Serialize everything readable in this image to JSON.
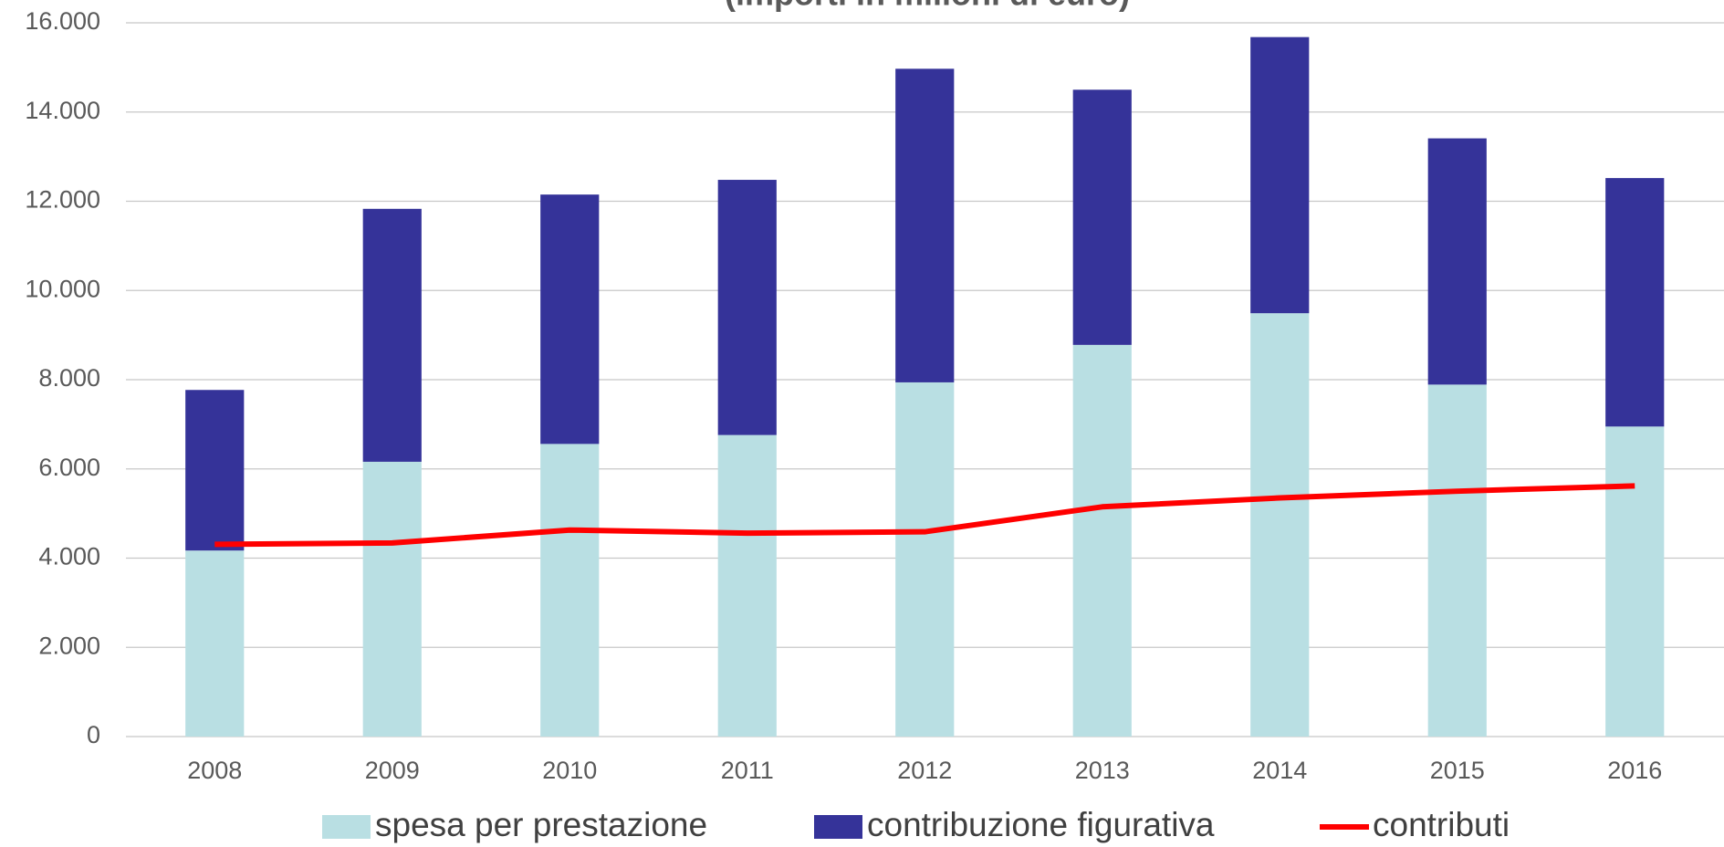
{
  "chart_data": {
    "type": "bar",
    "subtitle": "(importi in milioni di euro)",
    "categories": [
      "2008",
      "2009",
      "2010",
      "2011",
      "2012",
      "2013",
      "2014",
      "2015",
      "2016"
    ],
    "series": [
      {
        "name": "spesa per prestazione",
        "color": "#b9dfe3",
        "values": [
          4170,
          6160,
          6560,
          6760,
          7940,
          8780,
          9490,
          7890,
          6950
        ]
      },
      {
        "name": "contribuzione figurativa",
        "color": "#353399",
        "values": [
          3600,
          5670,
          5590,
          5720,
          7030,
          5720,
          6190,
          5520,
          5570
        ]
      },
      {
        "name": "contributi",
        "type": "line",
        "color": "#ff0000",
        "values": [
          4310,
          4340,
          4630,
          4560,
          4590,
          5150,
          5350,
          5500,
          5620
        ]
      }
    ],
    "stacked": true,
    "ylim": [
      0,
      16000
    ],
    "yticks": [
      0,
      {
        "value": 2000,
        "label": "2.000"
      },
      {
        "value": 4000,
        "label": "4.000"
      },
      {
        "value": 6000,
        "label": "6.000"
      },
      {
        "value": 8000,
        "label": "8.000"
      },
      {
        "value": 10000,
        "label": "10.000"
      },
      {
        "value": 12000,
        "label": "12.000"
      },
      {
        "value": 14000,
        "label": "14.000"
      },
      {
        "value": 16000,
        "label": "16.000"
      }
    ],
    "grid": true,
    "legend": "bottom"
  }
}
